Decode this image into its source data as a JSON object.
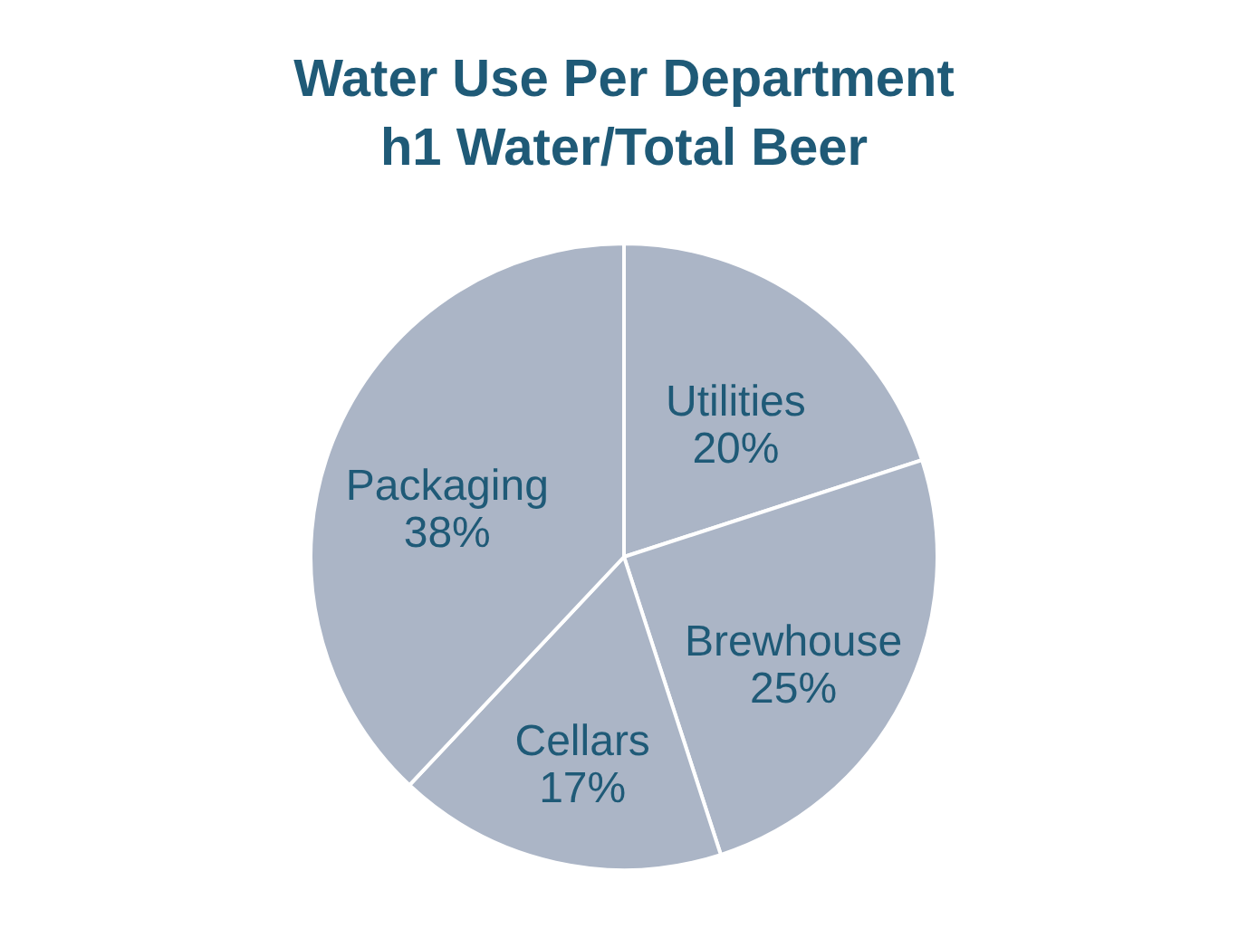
{
  "chart_data": {
    "type": "pie",
    "title": "Water Use Per Department\nh1 Water/Total Beer",
    "categories": [
      "Utilities",
      "Brewhouse",
      "Cellars",
      "Packaging"
    ],
    "values": [
      20,
      25,
      17,
      38
    ],
    "value_labels": [
      "20%",
      "25%",
      "17%",
      "38%"
    ],
    "colors": [
      "#abb5c6",
      "#abb5c6",
      "#abb5c6",
      "#abb5c6"
    ]
  }
}
